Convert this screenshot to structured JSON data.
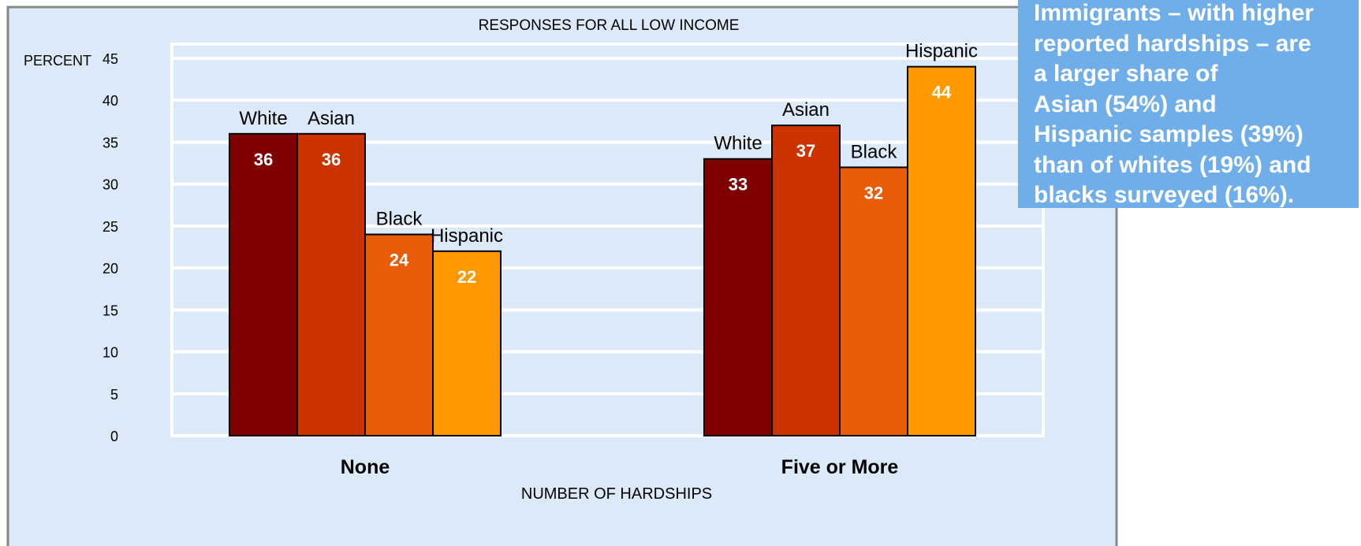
{
  "chart_data": {
    "type": "bar",
    "title": "RESPONSES FOR ALL LOW INCOME",
    "ylabel": "PERCENT",
    "xlabel": "NUMBER OF HARDSHIPS",
    "categories": [
      "None",
      "Five or More"
    ],
    "series": [
      {
        "name": "White",
        "values": [
          36,
          33
        ],
        "color": "#7f0000"
      },
      {
        "name": "Asian",
        "values": [
          36,
          37
        ],
        "color": "#cc3300"
      },
      {
        "name": "Black",
        "values": [
          24,
          32
        ],
        "color": "#e85c0a"
      },
      {
        "name": "Hispanic",
        "values": [
          22,
          44
        ],
        "color": "#ff9900"
      }
    ],
    "ylim": [
      0,
      45
    ],
    "yticks": [
      0,
      5,
      10,
      15,
      20,
      25,
      30,
      35,
      40,
      45
    ],
    "grid": true,
    "plot_background": "#dbe9f8",
    "legend": "none (series names shown above bars)"
  },
  "callout": {
    "lines": [
      "Immigrants – with higher",
      "reported hardships – are",
      "a larger share of",
      "Asian (54%) and",
      "Hispanic samples (39%)",
      "than of whites (19%) and",
      "blacks surveyed (16%)."
    ],
    "background": "#6faee8"
  }
}
